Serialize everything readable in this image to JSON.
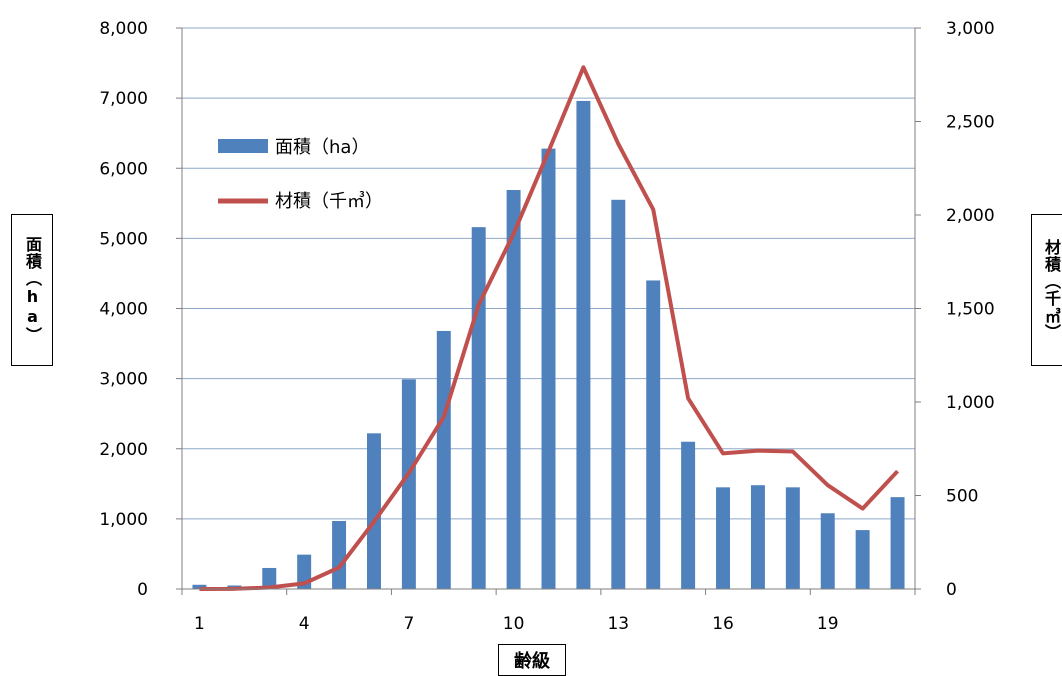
{
  "chart_data": {
    "type": "bar",
    "x_ticks": [
      "1",
      "4",
      "7",
      "10",
      "13",
      "16",
      "19"
    ],
    "categories": [
      1,
      2,
      3,
      4,
      5,
      6,
      7,
      8,
      9,
      10,
      11,
      12,
      13,
      14,
      15,
      16,
      17,
      18,
      19,
      20,
      21
    ],
    "xlabel": "齢級",
    "ylabel_left": "面積（ha）",
    "ylabel_right": "材積（千㎥）",
    "ylim_left": [
      0,
      8000
    ],
    "ylim_right": [
      0,
      3000
    ],
    "yticks_left": [
      "0",
      "1,000",
      "2,000",
      "3,000",
      "4,000",
      "5,000",
      "6,000",
      "7,000",
      "8,000"
    ],
    "yticks_right": [
      "0",
      "500",
      "1,000",
      "1,500",
      "2,000",
      "2,500",
      "3,000"
    ],
    "grid": true,
    "legend_position": "top-left",
    "series": [
      {
        "name": "面積（ha）",
        "type": "bar",
        "axis": "left",
        "color": "#4F81BD",
        "values": [
          60,
          50,
          300,
          490,
          970,
          2220,
          2990,
          3680,
          5160,
          5690,
          6280,
          6960,
          5550,
          4400,
          2100,
          1450,
          1480,
          1450,
          1080,
          840,
          1310
        ]
      },
      {
        "name": "材積（千㎥）",
        "type": "line",
        "axis": "right",
        "color": "#C0504D",
        "values": [
          0,
          1,
          8,
          30,
          115,
          360,
          620,
          920,
          1520,
          1900,
          2340,
          2790,
          2380,
          2030,
          1020,
          725,
          740,
          735,
          555,
          430,
          630
        ]
      }
    ]
  }
}
